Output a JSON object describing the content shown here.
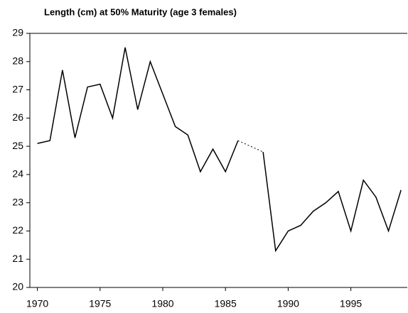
{
  "chart_data": {
    "type": "line",
    "title": "Length (cm) at 50% Maturity (age 3 females)",
    "x": [
      1970,
      1971,
      1972,
      1973,
      1974,
      1975,
      1976,
      1977,
      1978,
      1979,
      1980,
      1981,
      1982,
      1983,
      1984,
      1985,
      1986,
      1987,
      1988,
      1989,
      1990,
      1991,
      1992,
      1993,
      1994,
      1995,
      1996,
      1997,
      1998,
      1999
    ],
    "series": [
      {
        "name": "Length at 50% maturity",
        "color": "#000000",
        "values": [
          25.1,
          25.2,
          27.7,
          25.3,
          27.1,
          27.2,
          26.0,
          28.5,
          26.3,
          28.0,
          26.85,
          25.7,
          25.4,
          24.1,
          24.9,
          24.1,
          25.2,
          null,
          24.8,
          21.3,
          22.0,
          22.2,
          22.7,
          23.0,
          23.4,
          22.0,
          23.8,
          23.2,
          22.0,
          23.45
        ]
      }
    ],
    "xlim": [
      1969.4,
      1999.5
    ],
    "xticks": [
      1970,
      1975,
      1980,
      1985,
      1990,
      1995
    ],
    "ylim": [
      20,
      29
    ],
    "yticks": [
      20,
      21,
      22,
      23,
      24,
      25,
      26,
      27,
      28,
      29
    ]
  }
}
